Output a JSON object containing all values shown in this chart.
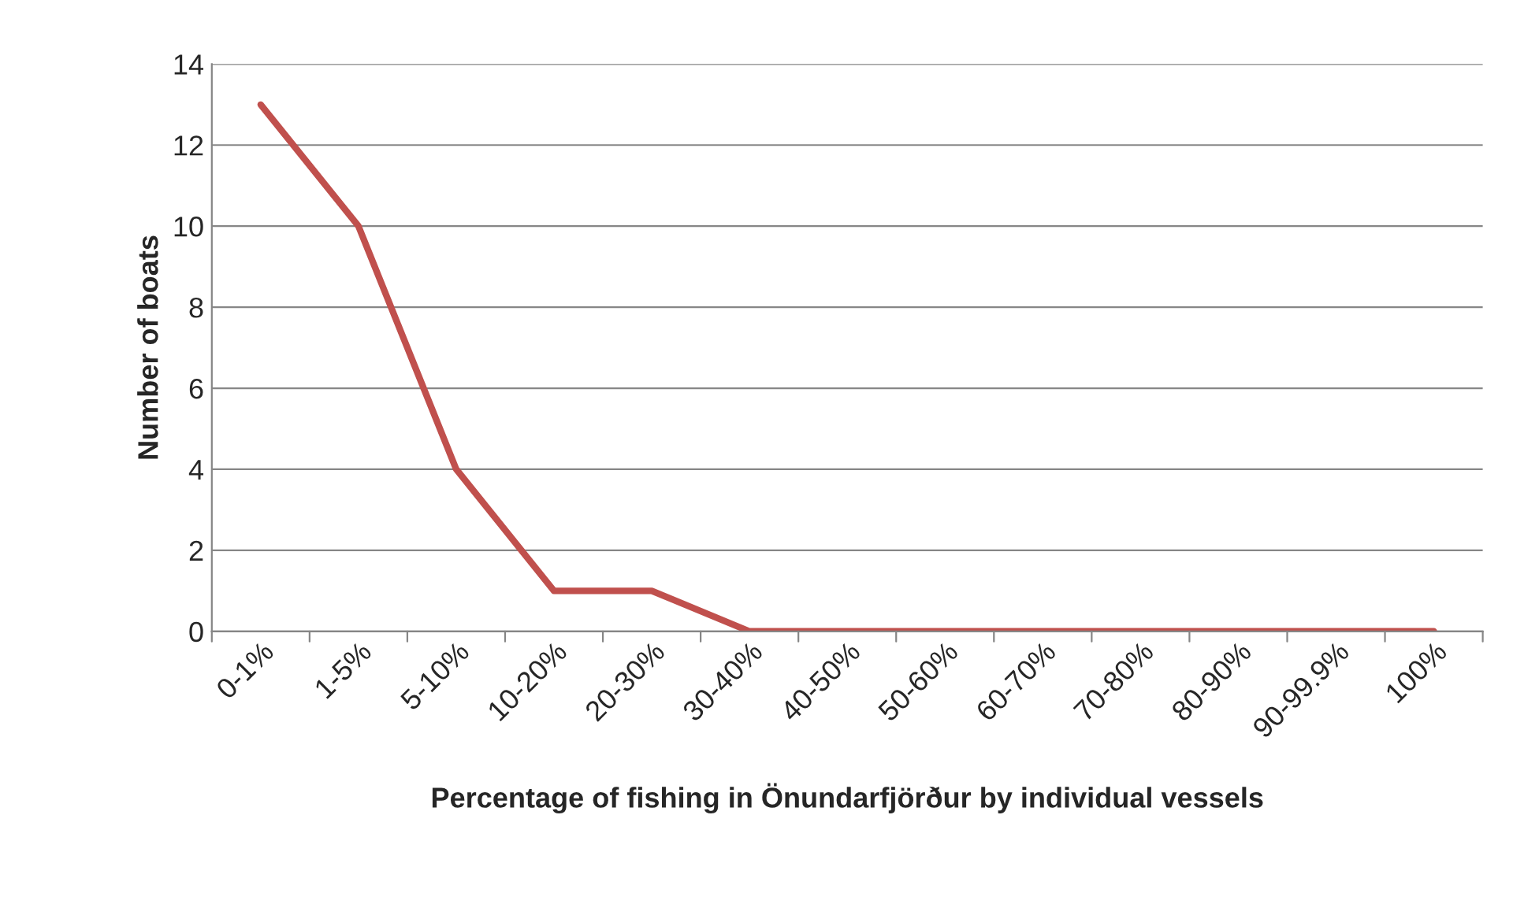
{
  "chart_data": {
    "type": "line",
    "xlabel": "Percentage of fishing in Önundarfjörður by individual vessels",
    "ylabel": "Number of boats",
    "categories": [
      "0-1%",
      "1-5%",
      "5-10%",
      "10-20%",
      "20-30%",
      "30-40%",
      "40-50%",
      "50-60%",
      "60-70%",
      "70-80%",
      "80-90%",
      "90-99.9%",
      "100%"
    ],
    "series": [
      {
        "color": "#c0504d",
        "values": [
          13,
          10,
          4,
          1,
          1,
          0,
          0,
          0,
          0,
          0,
          0,
          0,
          0
        ]
      }
    ],
    "ylim": [
      0,
      14
    ],
    "yticks": [
      0,
      2,
      4,
      6,
      8,
      10,
      12,
      14
    ],
    "grid": "y",
    "legend": false,
    "marker": "none",
    "line_style": "solid"
  }
}
